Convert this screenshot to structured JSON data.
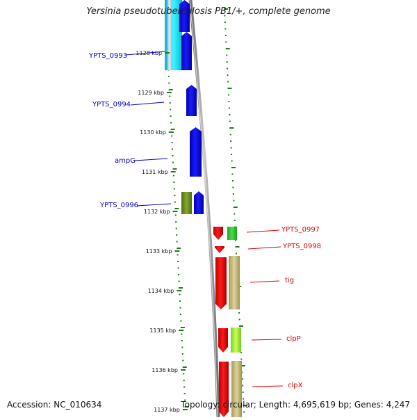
{
  "title": "Yersinia pseudotuberculosis PB1/+, complete genome",
  "accession": "Accession: NC_010634",
  "summary": "Topology: circular; Length: 4,695,619 bp; Genes: 4,247",
  "colors": {
    "forward_label": "#0000cc",
    "reverse_label": "#dd0000",
    "backbone": "#8c8c8c",
    "tick": "#1e7a1e"
  },
  "ruler": {
    "labels": [
      "1128 kbp",
      "1129 kbp",
      "1130 kbp",
      "1131 kbp",
      "1132 kbp",
      "1133 kbp",
      "1134 kbp",
      "1135 kbp",
      "1136 kbp",
      "1137 kbp"
    ]
  },
  "forward_genes": [
    {
      "label": "YPTS_0993"
    },
    {
      "label": "YPTS_0994"
    },
    {
      "label": "ampG"
    },
    {
      "label": "YPTS_0996"
    }
  ],
  "reverse_genes": [
    {
      "label": "YPTS_0997"
    },
    {
      "label": "YPTS_0998"
    },
    {
      "label": "tig"
    },
    {
      "label": "clpP"
    },
    {
      "label": "clpX"
    }
  ]
}
